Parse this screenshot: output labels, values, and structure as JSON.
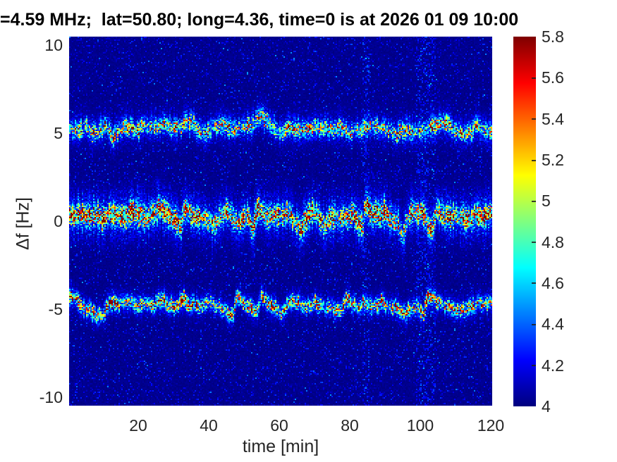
{
  "figure": {
    "background": "#ffffff",
    "title_color": "#000000",
    "tick_color": "#262626"
  },
  "chart_data": {
    "type": "heatmap",
    "subtype": "doppler-spectrogram",
    "title": "=4.59 MHz;  lat=50.80; long=4.36, time=0 is at 2026 01 09 10:00",
    "xlabel": "time [min]",
    "ylabel": "Δf [Hz]",
    "xlim": [
      0.4,
      120.4
    ],
    "ylim": [
      -10.48,
      10.48
    ],
    "xticks": [
      20,
      40,
      60,
      80,
      100,
      120
    ],
    "yticks": [
      10,
      5,
      0,
      -5,
      -10
    ],
    "grid": false,
    "colorbar": {
      "min": 4,
      "max": 5.8,
      "ticks": [
        4,
        4.2,
        4.4,
        4.6,
        4.8,
        5,
        5.2,
        5.4,
        5.6,
        5.8
      ],
      "colormap": "jet",
      "position": "right"
    },
    "noise_floor_value": 4.0,
    "speckle_streaks_t": [
      [
        83.5,
        85.5
      ],
      [
        99,
        104.5
      ]
    ],
    "traces": [
      {
        "name": "upper-sideband",
        "approx_center_hz": 5.2,
        "sigma_core_hz": 0.26,
        "sigma_halo_hz": 0.65,
        "halo_frac": 0.26,
        "points": [
          [
            0,
            5.15
          ],
          [
            3,
            5.1
          ],
          [
            5,
            5.25
          ],
          [
            7,
            5.1
          ],
          [
            9,
            5.2
          ],
          [
            11,
            5.3
          ],
          [
            13,
            4.75
          ],
          [
            15,
            5.2
          ],
          [
            17,
            5.3
          ],
          [
            19,
            5.2
          ],
          [
            21,
            5.35
          ],
          [
            23,
            5.2
          ],
          [
            25,
            5.3
          ],
          [
            27,
            5.45
          ],
          [
            29,
            5.3
          ],
          [
            31,
            5.2
          ],
          [
            33,
            5.45
          ],
          [
            35,
            5.6
          ],
          [
            37,
            5.2
          ],
          [
            38.5,
            5.0
          ],
          [
            40,
            5.2
          ],
          [
            42,
            5.35
          ],
          [
            44,
            5.5
          ],
          [
            46,
            5.3
          ],
          [
            48,
            5.15
          ],
          [
            50,
            5.3
          ],
          [
            52,
            5.5
          ],
          [
            55,
            5.9
          ],
          [
            57,
            5.6
          ],
          [
            59,
            5.25
          ],
          [
            61,
            5.05
          ],
          [
            63,
            5.3
          ],
          [
            64.5,
            5.45
          ],
          [
            66,
            5.2
          ],
          [
            68,
            5.25
          ],
          [
            70,
            5.3
          ],
          [
            72,
            5.25
          ],
          [
            74,
            5.2
          ],
          [
            76,
            5.15
          ],
          [
            78,
            5.2
          ],
          [
            80,
            5.0
          ],
          [
            82,
            5.15
          ],
          [
            84,
            5.2
          ],
          [
            86,
            5.3
          ],
          [
            88,
            5.25
          ],
          [
            90,
            5.2
          ],
          [
            92,
            5.1
          ],
          [
            94,
            5.05
          ],
          [
            96,
            5.15
          ],
          [
            98,
            5.1
          ],
          [
            100,
            4.95
          ],
          [
            102,
            5.1
          ],
          [
            104,
            5.5
          ],
          [
            106,
            5.75
          ],
          [
            108,
            5.4
          ],
          [
            110,
            5.1
          ],
          [
            112,
            5.0
          ],
          [
            114,
            5.1
          ],
          [
            116,
            5.3
          ],
          [
            118,
            5.1
          ],
          [
            120,
            5.0
          ],
          [
            121,
            4.9
          ]
        ],
        "amps": [
          [
            0,
            1.05
          ],
          [
            4,
            1.15
          ],
          [
            8,
            1.1
          ],
          [
            12,
            1.3
          ],
          [
            14,
            1.0
          ],
          [
            18,
            1.2
          ],
          [
            22,
            1.1
          ],
          [
            26,
            1.25
          ],
          [
            30,
            1.1
          ],
          [
            34,
            1.3
          ],
          [
            38,
            1.0
          ],
          [
            42,
            1.15
          ],
          [
            45,
            1.3
          ],
          [
            48,
            1.05
          ],
          [
            52,
            1.2
          ],
          [
            55,
            1.25
          ],
          [
            58,
            1.1
          ],
          [
            61,
            1.0
          ],
          [
            64,
            1.25
          ],
          [
            67,
            1.0
          ],
          [
            70,
            1.25
          ],
          [
            73,
            1.2
          ],
          [
            76,
            1.0
          ],
          [
            80,
            0.95
          ],
          [
            84,
            1.05
          ],
          [
            88,
            1.15
          ],
          [
            92,
            1.0
          ],
          [
            94,
            1.25
          ],
          [
            97,
            1.0
          ],
          [
            100,
            1.05
          ],
          [
            104,
            1.35
          ],
          [
            106,
            1.4
          ],
          [
            109,
            1.15
          ],
          [
            112,
            1.0
          ],
          [
            115,
            1.1
          ],
          [
            118,
            1.05
          ],
          [
            121,
            1.0
          ]
        ]
      },
      {
        "name": "carrier-line",
        "approx_center_hz": 0.3,
        "sigma_core_hz": 0.32,
        "sigma_halo_hz": 0.9,
        "halo_frac": 0.3,
        "points": [
          [
            0,
            0.3
          ],
          [
            2,
            0.15
          ],
          [
            4,
            0.35
          ],
          [
            6,
            0.2
          ],
          [
            8,
            0.4
          ],
          [
            10,
            0.1
          ],
          [
            12,
            0.45
          ],
          [
            14,
            0.3
          ],
          [
            16,
            0.2
          ],
          [
            18,
            0.5
          ],
          [
            20,
            0.35
          ],
          [
            22,
            0.2
          ],
          [
            24,
            0.4
          ],
          [
            26,
            0.7
          ],
          [
            28,
            0.4
          ],
          [
            30,
            0.1
          ],
          [
            32,
            -0.2
          ],
          [
            33.5,
            0.85
          ],
          [
            35,
            0.4
          ],
          [
            37,
            0.1
          ],
          [
            39,
            0.25
          ],
          [
            41,
            -0.3
          ],
          [
            43,
            0.15
          ],
          [
            45,
            0.6
          ],
          [
            47,
            0.2
          ],
          [
            49,
            -0.1
          ],
          [
            51,
            0.2
          ],
          [
            52.5,
            -0.5
          ],
          [
            54,
            0.85
          ],
          [
            56,
            0.3
          ],
          [
            58,
            0.15
          ],
          [
            60,
            0.3
          ],
          [
            62,
            0.6
          ],
          [
            64,
            0.1
          ],
          [
            66,
            -0.4
          ],
          [
            68,
            0.2
          ],
          [
            69.5,
            0.7
          ],
          [
            71,
            0.3
          ],
          [
            73,
            -0.2
          ],
          [
            75,
            0.35
          ],
          [
            77,
            0.1
          ],
          [
            79,
            0.3
          ],
          [
            81,
            0.55
          ],
          [
            83,
            -0.1
          ],
          [
            83.9,
            -0.6
          ],
          [
            84.3,
            0.8
          ],
          [
            86,
            0.45
          ],
          [
            88,
            0.35
          ],
          [
            90,
            0.5
          ],
          [
            92,
            0.1
          ],
          [
            94,
            -0.2
          ],
          [
            95,
            -0.75
          ],
          [
            96.5,
            0.2
          ],
          [
            98,
            0.45
          ],
          [
            100,
            0.5
          ],
          [
            102,
            -0.1
          ],
          [
            103.5,
            -0.5
          ],
          [
            104.5,
            0.6
          ],
          [
            106,
            0.35
          ],
          [
            108,
            0.45
          ],
          [
            110,
            0.2
          ],
          [
            112,
            0.25
          ],
          [
            114,
            0.15
          ],
          [
            116,
            0.3
          ],
          [
            118,
            0.25
          ],
          [
            120,
            0.4
          ],
          [
            121,
            0.3
          ]
        ],
        "amps": [
          [
            0,
            1.7
          ],
          [
            6,
            1.75
          ],
          [
            12,
            1.7
          ],
          [
            18,
            1.75
          ],
          [
            24,
            1.6
          ],
          [
            28,
            1.7
          ],
          [
            33,
            1.8
          ],
          [
            36,
            1.3
          ],
          [
            40,
            1.25
          ],
          [
            45,
            1.5
          ],
          [
            50,
            1.2
          ],
          [
            54,
            1.8
          ],
          [
            57,
            1.25
          ],
          [
            61,
            1.4
          ],
          [
            64,
            1.3
          ],
          [
            68,
            1.5
          ],
          [
            70,
            1.7
          ],
          [
            73,
            1.2
          ],
          [
            76,
            1.5
          ],
          [
            79,
            1.2
          ],
          [
            81,
            1.5
          ],
          [
            84,
            1.8
          ],
          [
            87,
            1.5
          ],
          [
            90,
            1.6
          ],
          [
            93,
            1.2
          ],
          [
            95,
            1.3
          ],
          [
            98,
            1.5
          ],
          [
            100,
            1.6
          ],
          [
            103,
            1.4
          ],
          [
            105,
            1.6
          ],
          [
            108,
            1.6
          ],
          [
            111,
            1.3
          ],
          [
            114,
            1.35
          ],
          [
            117,
            1.4
          ],
          [
            120,
            1.5
          ]
        ]
      },
      {
        "name": "lower-sideband",
        "approx_center_hz": -4.75,
        "sigma_core_hz": 0.22,
        "sigma_halo_hz": 0.5,
        "halo_frac": 0.24,
        "points": [
          [
            0,
            -4.4
          ],
          [
            2,
            -4.5
          ],
          [
            4,
            -4.8
          ],
          [
            6,
            -5.05
          ],
          [
            8,
            -5.25
          ],
          [
            10,
            -5.3
          ],
          [
            12,
            -4.75
          ],
          [
            13,
            -4.55
          ],
          [
            15,
            -4.65
          ],
          [
            17,
            -4.6
          ],
          [
            19,
            -4.7
          ],
          [
            21,
            -4.6
          ],
          [
            23,
            -4.65
          ],
          [
            25,
            -4.7
          ],
          [
            27,
            -4.5
          ],
          [
            29,
            -4.6
          ],
          [
            31,
            -4.75
          ],
          [
            33,
            -4.5
          ],
          [
            35,
            -4.8
          ],
          [
            37,
            -4.85
          ],
          [
            39,
            -4.65
          ],
          [
            41,
            -4.7
          ],
          [
            43,
            -4.9
          ],
          [
            45,
            -5.05
          ],
          [
            47,
            -5.3
          ],
          [
            48,
            -4.4
          ],
          [
            50,
            -4.6
          ],
          [
            52,
            -4.85
          ],
          [
            54,
            -5.0
          ],
          [
            55,
            -4.35
          ],
          [
            57,
            -4.6
          ],
          [
            59,
            -4.9
          ],
          [
            60.5,
            -5.2
          ],
          [
            62,
            -4.9
          ],
          [
            63,
            -4.4
          ],
          [
            65,
            -4.7
          ],
          [
            67,
            -4.9
          ],
          [
            69,
            -4.7
          ],
          [
            70,
            -4.55
          ],
          [
            72,
            -4.8
          ],
          [
            74,
            -5.0
          ],
          [
            76,
            -5.1
          ],
          [
            78,
            -4.9
          ],
          [
            79,
            -4.5
          ],
          [
            81,
            -4.7
          ],
          [
            83,
            -4.85
          ],
          [
            84,
            -4.6
          ],
          [
            86,
            -4.95
          ],
          [
            88,
            -4.7
          ],
          [
            89,
            -4.55
          ],
          [
            91,
            -4.85
          ],
          [
            93,
            -5.0
          ],
          [
            95,
            -5.35
          ],
          [
            97,
            -5.0
          ],
          [
            99,
            -4.9
          ],
          [
            101,
            -5.2
          ],
          [
            102,
            -4.3
          ],
          [
            104,
            -4.4
          ],
          [
            106,
            -4.65
          ],
          [
            108,
            -4.9
          ],
          [
            110,
            -5.05
          ],
          [
            112,
            -5.1
          ],
          [
            114,
            -4.95
          ],
          [
            116,
            -4.8
          ],
          [
            118,
            -4.65
          ],
          [
            120,
            -4.55
          ],
          [
            121,
            -4.6
          ]
        ],
        "amps": [
          [
            0,
            1.6
          ],
          [
            2,
            1.5
          ],
          [
            5,
            1.3
          ],
          [
            7,
            1.5
          ],
          [
            10,
            1.1
          ],
          [
            13,
            1.5
          ],
          [
            16,
            1.2
          ],
          [
            19,
            1.25
          ],
          [
            22,
            1.3
          ],
          [
            25,
            1.2
          ],
          [
            28,
            1.45
          ],
          [
            31,
            1.2
          ],
          [
            33,
            1.5
          ],
          [
            36,
            1.15
          ],
          [
            39,
            1.25
          ],
          [
            42,
            1.2
          ],
          [
            45,
            1.15
          ],
          [
            47,
            1.3
          ],
          [
            48,
            1.55
          ],
          [
            51,
            1.2
          ],
          [
            55,
            1.5
          ],
          [
            58,
            1.2
          ],
          [
            61,
            1.15
          ],
          [
            63,
            1.55
          ],
          [
            66,
            1.2
          ],
          [
            70,
            1.35
          ],
          [
            73,
            1.15
          ],
          [
            76,
            1.2
          ],
          [
            79,
            1.55
          ],
          [
            82,
            1.2
          ],
          [
            84,
            1.35
          ],
          [
            87,
            1.2
          ],
          [
            89,
            1.4
          ],
          [
            92,
            1.15
          ],
          [
            95,
            1.2
          ],
          [
            98,
            1.25
          ],
          [
            101,
            1.4
          ],
          [
            102,
            1.75
          ],
          [
            103,
            1.7
          ],
          [
            105,
            1.3
          ],
          [
            108,
            1.2
          ],
          [
            111,
            1.15
          ],
          [
            114,
            1.3
          ],
          [
            117,
            1.3
          ],
          [
            120,
            1.5
          ],
          [
            121,
            1.3
          ]
        ]
      }
    ]
  }
}
